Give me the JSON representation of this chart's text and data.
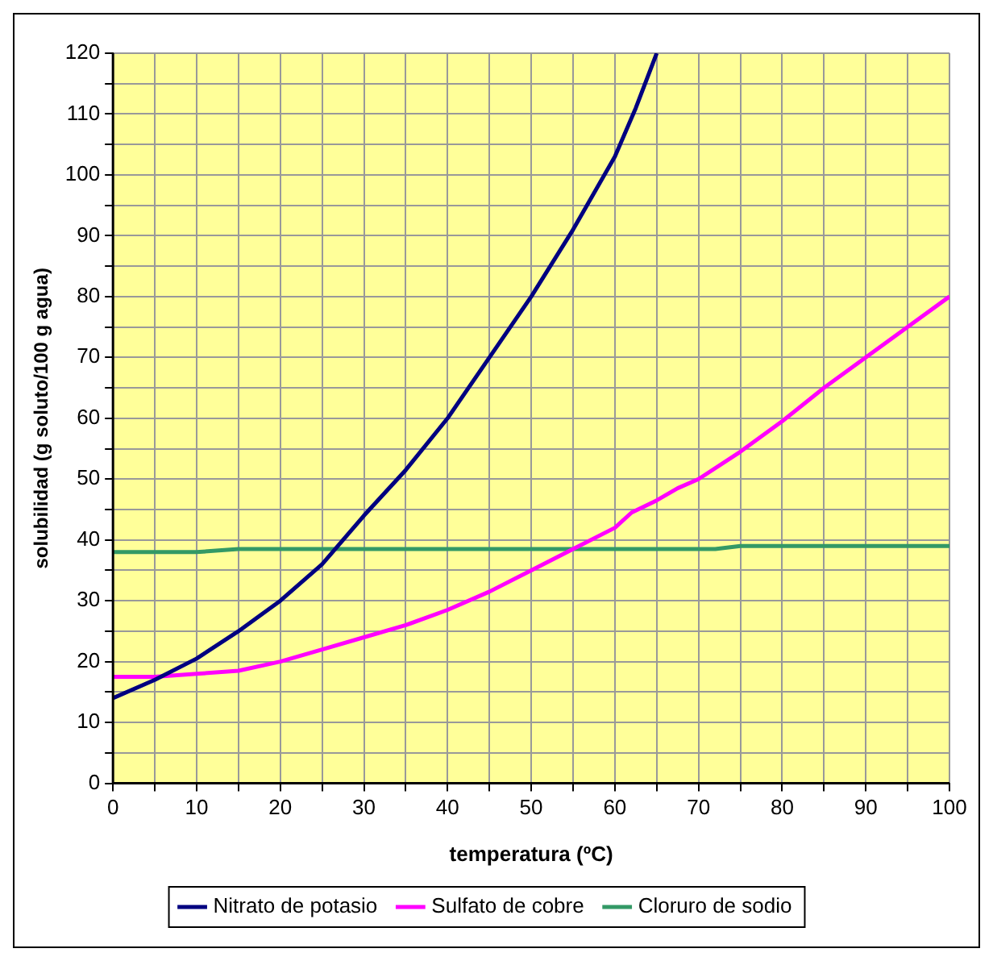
{
  "chart_data": {
    "type": "line",
    "xlabel": "temperatura (ºC)",
    "ylabel": "solubilidad (g soluto/100 g agua)",
    "xlim": [
      0,
      100
    ],
    "ylim": [
      0,
      120
    ],
    "xticks": [
      0,
      {
        "value": 5,
        "label": null
      },
      10,
      {
        "value": 15,
        "label": null
      },
      20,
      {
        "value": 25,
        "label": null
      },
      30,
      {
        "value": 35,
        "label": null
      },
      40,
      {
        "value": 45,
        "label": null
      },
      50,
      {
        "value": 55,
        "label": null
      },
      60,
      {
        "value": 65,
        "label": null
      },
      70,
      {
        "value": 75,
        "label": null
      },
      80,
      {
        "value": 85,
        "label": null
      },
      90,
      {
        "value": 95,
        "label": null
      },
      100
    ],
    "yticks": [
      0,
      {
        "value": 5,
        "label": null
      },
      10,
      {
        "value": 15,
        "label": null
      },
      20,
      {
        "value": 25,
        "label": null
      },
      30,
      {
        "value": 35,
        "label": null
      },
      40,
      {
        "value": 45,
        "label": null
      },
      50,
      {
        "value": 55,
        "label": null
      },
      60,
      {
        "value": 65,
        "label": null
      },
      70,
      {
        "value": 75,
        "label": null
      },
      80,
      {
        "value": 85,
        "label": null
      },
      90,
      {
        "value": 95,
        "label": null
      },
      100,
      {
        "value": 105,
        "label": null
      },
      110,
      {
        "value": 115,
        "label": null
      },
      120
    ],
    "grid": true,
    "legend": "bottom",
    "marker": "none",
    "line_style": "solid",
    "series": [
      {
        "name": "Nitrato de potasio",
        "color": "#000080",
        "x": [
          0,
          5,
          10,
          15,
          20,
          25,
          30,
          35,
          40,
          45,
          50,
          55,
          60,
          62.5,
          65
        ],
        "values": [
          14,
          17,
          20.5,
          25,
          30,
          36,
          44,
          51.5,
          60,
          70,
          80,
          91,
          103,
          111,
          120
        ]
      },
      {
        "name": "Sulfato de cobre",
        "color": "#ff00ff",
        "x": [
          0,
          5,
          10,
          15,
          20,
          25,
          30,
          35,
          40,
          45,
          50,
          55,
          60,
          62,
          65,
          67.5,
          70,
          75,
          80,
          85,
          90,
          95,
          100
        ],
        "values": [
          17.5,
          17.5,
          18,
          18.5,
          20,
          22,
          24,
          26,
          28.5,
          31.5,
          35,
          38.5,
          42,
          44.5,
          46.5,
          48.5,
          50,
          54.5,
          59.5,
          65,
          70,
          75,
          80
        ]
      },
      {
        "name": "Cloruro de sodio",
        "color": "#339966",
        "x": [
          0,
          10,
          15,
          55,
          72,
          75,
          100
        ],
        "values": [
          38,
          38,
          38.5,
          38.5,
          38.5,
          39,
          39
        ]
      }
    ]
  }
}
